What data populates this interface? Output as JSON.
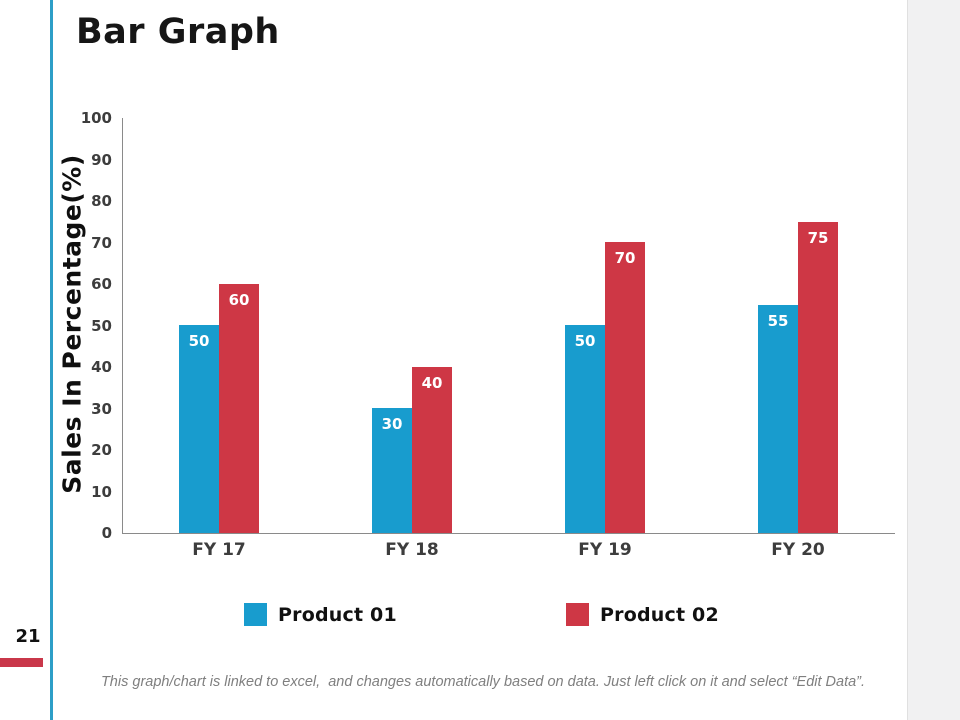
{
  "slide": {
    "title": "Bar Graph",
    "page_number": "21",
    "footer_note": "This graph/chart is linked to excel,  and changes automatically based on data. Just left click on it and select “Edit Data”."
  },
  "colors": {
    "product01": "#189CCE",
    "product02": "#CE3745",
    "accent_line": "#2D9EC7",
    "page_marker": "#C9374A",
    "axis_line": "#8a8a8a",
    "tick_text": "#3d3d3d",
    "right_gutter": "#f1f1f2"
  },
  "chart_data": {
    "type": "bar",
    "title": "",
    "categories": [
      "FY 17",
      "FY 18",
      "FY 19",
      "FY 20"
    ],
    "series": [
      {
        "name": "Product 01",
        "color": "#189CCE",
        "values": [
          50,
          30,
          50,
          55
        ]
      },
      {
        "name": "Product 02",
        "color": "#CE3745",
        "values": [
          60,
          40,
          70,
          75
        ]
      }
    ],
    "ylabel": "Sales In Percentage(%)",
    "xlabel": "",
    "ylim": [
      0,
      100
    ],
    "ytick_step": 10,
    "grid": false,
    "legend_position": "bottom",
    "data_labels": "inside-top-white"
  }
}
